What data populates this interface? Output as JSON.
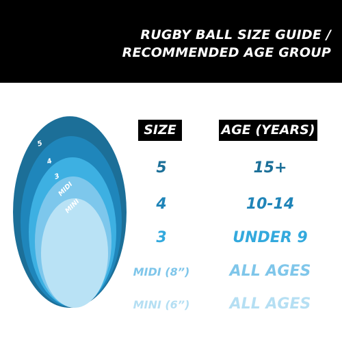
{
  "header": {
    "title_line_1": "RUGBY BALL SIZE GUIDE /",
    "title_line_2": "RECOMMENDED AGE GROUP"
  },
  "columns": {
    "size": "SIZE",
    "age": "AGE (YEARS)"
  },
  "rows": [
    {
      "size": "5",
      "age": "15+",
      "color": "#1b6f98"
    },
    {
      "size": "4",
      "age": "10-14",
      "color": "#1f84b8"
    },
    {
      "size": "3",
      "age": "UNDER 9",
      "color": "#33a9dd"
    },
    {
      "size": "MIDI (8”)",
      "age": "ALL AGES",
      "color": "#7fc6ea"
    },
    {
      "size": "MINI (6”)",
      "age": "ALL AGES",
      "color": "#b5dff3"
    }
  ],
  "ball_labels": [
    "5",
    "4",
    "3",
    "MIDI",
    "MINI"
  ],
  "ball_colors": [
    "#1c6f98",
    "#1f86bb",
    "#3db0e2",
    "#7dc7ec",
    "#b9e2f5"
  ]
}
